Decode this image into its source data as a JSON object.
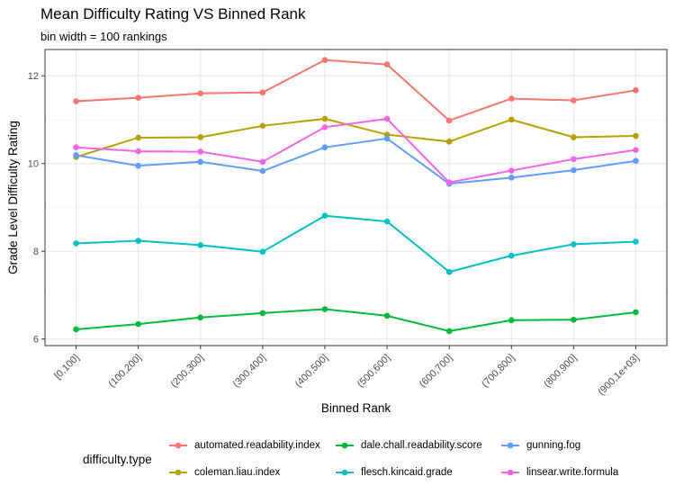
{
  "header": {
    "title": "Mean Difficulty Rating VS Binned Rank",
    "subtitle": "bin width = 100 rankings"
  },
  "legend": {
    "title": "difficulty.type"
  },
  "chart_data": {
    "type": "line",
    "title": "Mean Difficulty Rating VS Binned Rank",
    "subtitle": "bin width = 100 rankings",
    "xlabel": "Binned Rank",
    "ylabel": "Grade Level Difficulty Rating",
    "categories": [
      "[0,100]",
      "(100,200]",
      "(200,300]",
      "(300,400]",
      "(400,500]",
      "(500,600]",
      "(600,700]",
      "(700,800]",
      "(800,900]",
      "(900,1e+03]"
    ],
    "y_ticks": [
      6,
      8,
      10,
      12
    ],
    "ylim": [
      5.85,
      12.6
    ],
    "grid": true,
    "legend_position": "bottom",
    "series": [
      {
        "name": "automated.readability.index",
        "color": "#F8766D",
        "values": [
          11.42,
          11.5,
          11.6,
          11.62,
          12.36,
          12.26,
          10.98,
          11.48,
          11.44,
          11.67
        ]
      },
      {
        "name": "coleman.liau.index",
        "color": "#B79F00",
        "values": [
          10.15,
          10.59,
          10.6,
          10.86,
          11.02,
          10.66,
          10.5,
          11.0,
          10.6,
          10.63
        ]
      },
      {
        "name": "dale.chall.readability.score",
        "color": "#00BA38",
        "values": [
          6.22,
          6.34,
          6.49,
          6.59,
          6.68,
          6.53,
          6.18,
          6.43,
          6.44,
          6.61
        ]
      },
      {
        "name": "flesch.kincaid.grade",
        "color": "#00BFC4",
        "values": [
          8.18,
          8.24,
          8.14,
          7.99,
          8.81,
          8.68,
          7.53,
          7.9,
          8.16,
          8.22
        ]
      },
      {
        "name": "gunning.fog",
        "color": "#619CFF",
        "values": [
          10.19,
          9.95,
          10.04,
          9.83,
          10.37,
          10.57,
          9.54,
          9.68,
          9.85,
          10.06
        ]
      },
      {
        "name": "linsear.write.formula",
        "color": "#F564E3",
        "values": [
          10.37,
          10.28,
          10.27,
          10.04,
          10.83,
          11.02,
          9.57,
          9.84,
          10.1,
          10.31
        ]
      }
    ]
  }
}
